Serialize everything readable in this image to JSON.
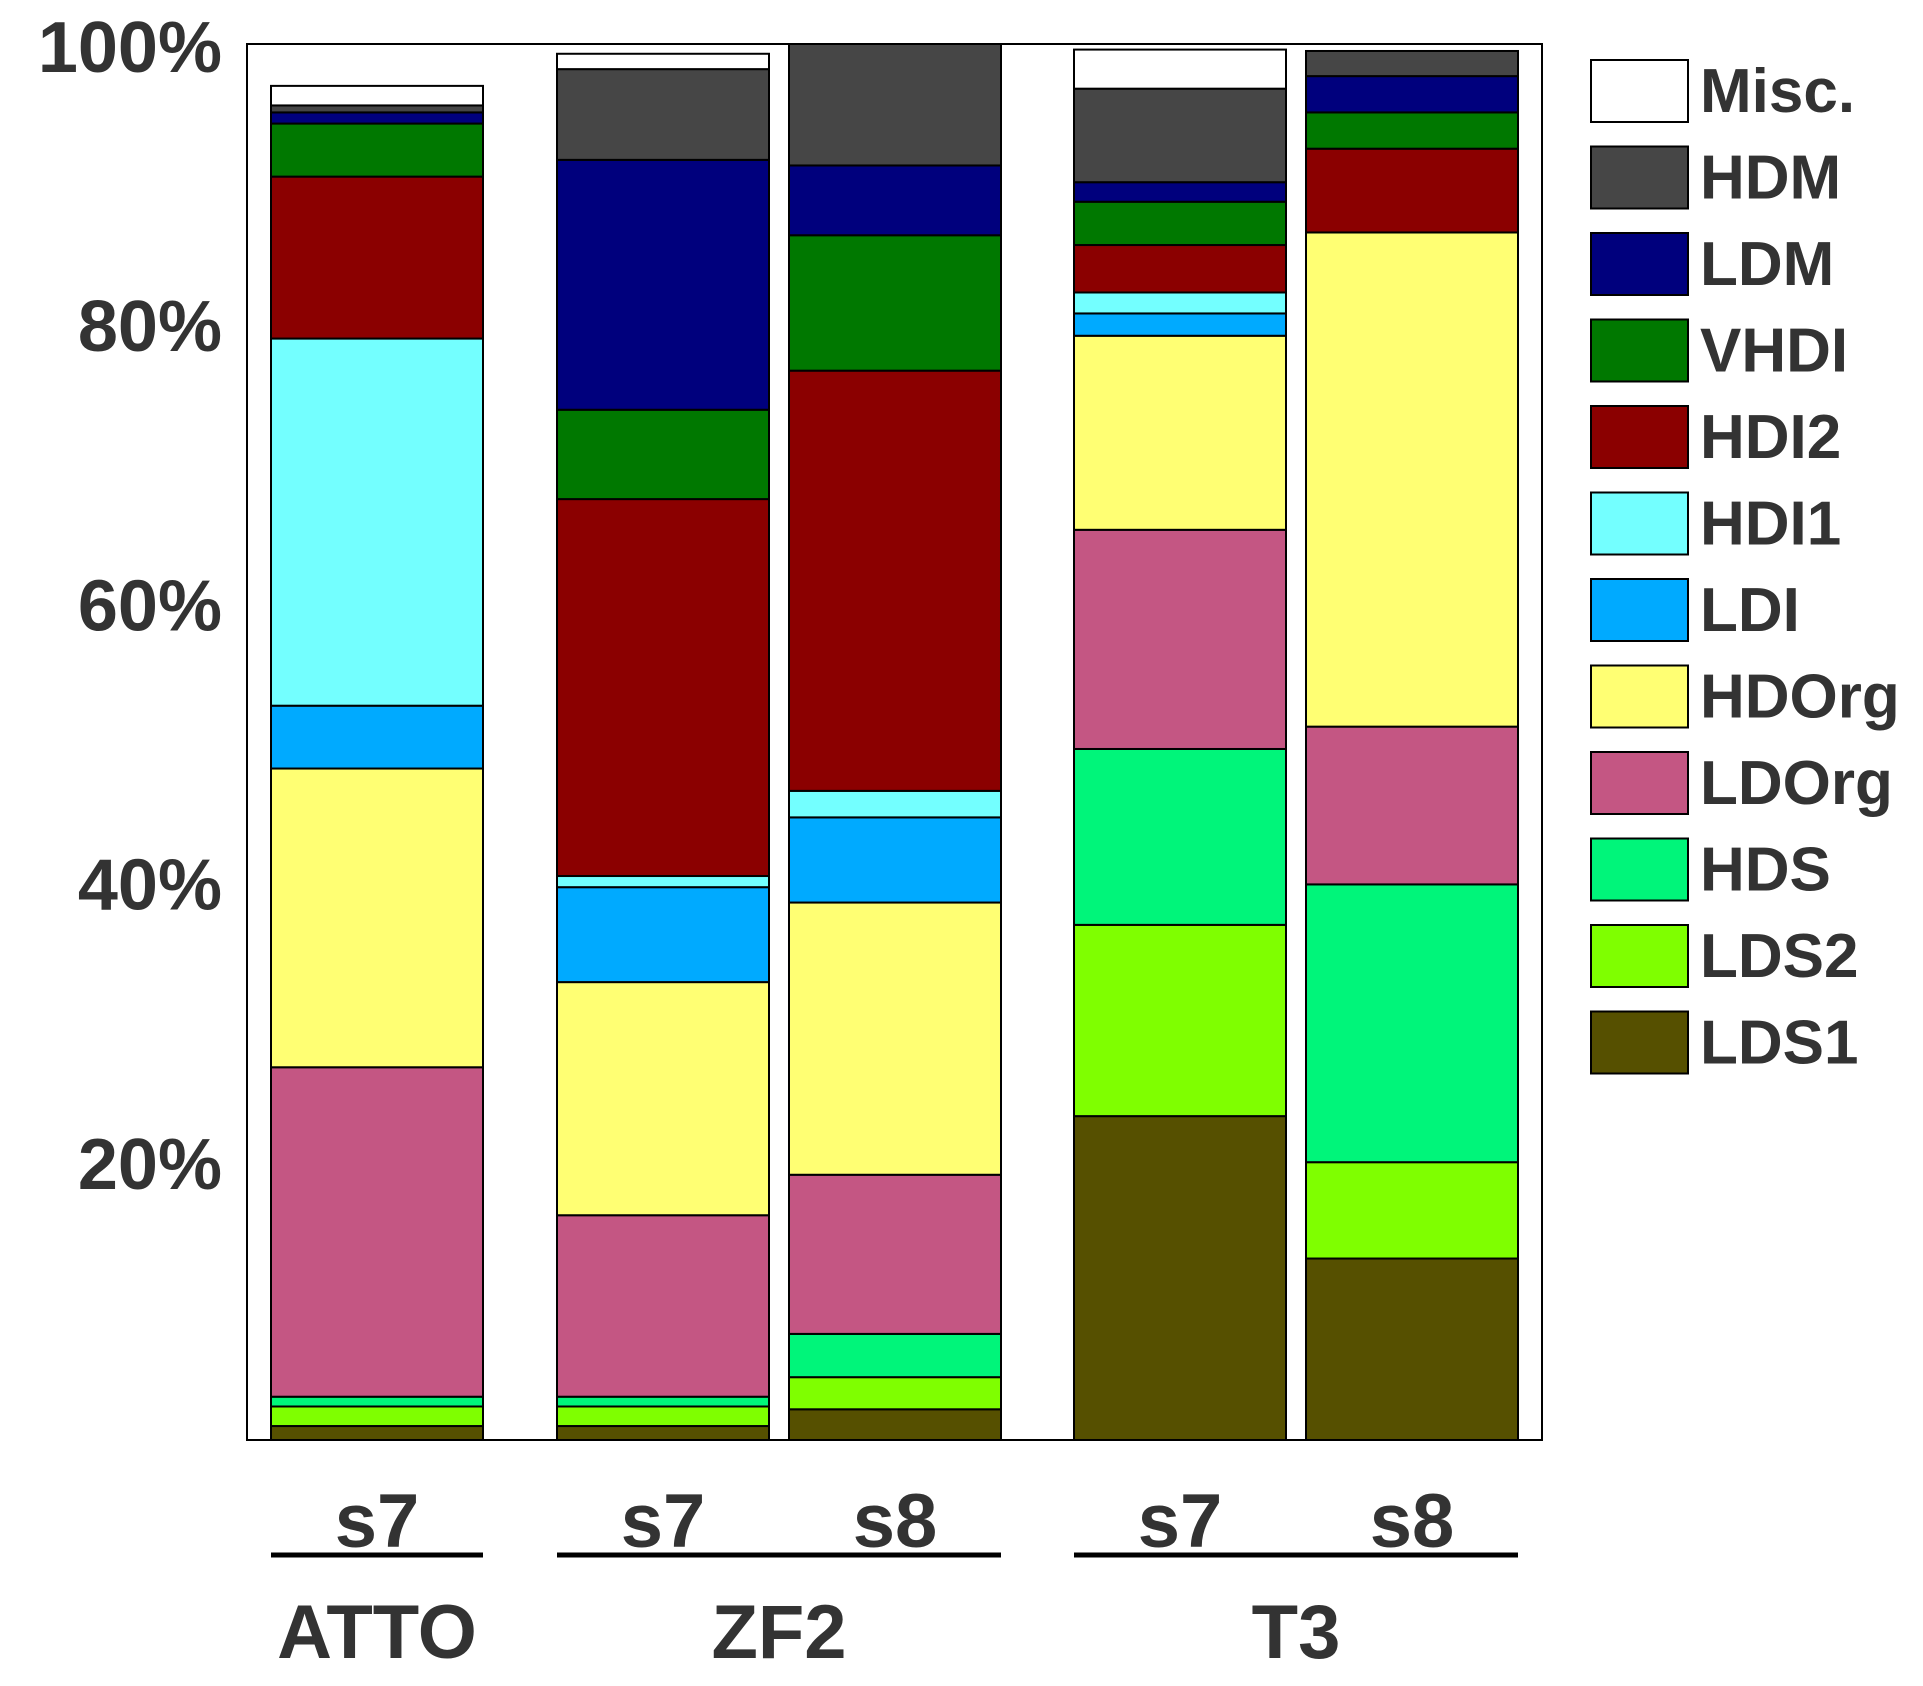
{
  "chart_data": {
    "type": "stacked-bar",
    "ylim": [
      0,
      100
    ],
    "y_ticks": [
      {
        "value": 20,
        "label": "20%"
      },
      {
        "value": 40,
        "label": "40%"
      },
      {
        "value": 60,
        "label": "60%"
      },
      {
        "value": 80,
        "label": "80%"
      },
      {
        "value": 100,
        "label": "100%"
      }
    ],
    "xlabel": "",
    "ylabel": "",
    "groups": [
      {
        "name": "ATTO",
        "bars": [
          "s7"
        ]
      },
      {
        "name": "ZF2",
        "bars": [
          "s7",
          "s8"
        ]
      },
      {
        "name": "T3",
        "bars": [
          "s7",
          "s8"
        ]
      }
    ],
    "series": [
      {
        "name": "LDS1",
        "color": "#565000",
        "values": [
          1.0,
          1.0,
          2.2,
          23.2,
          13.0
        ]
      },
      {
        "name": "LDS2",
        "color": "#7fff00",
        "values": [
          1.4,
          1.4,
          2.3,
          13.7,
          6.9
        ]
      },
      {
        "name": "HDS",
        "color": "#00f57a",
        "values": [
          0.7,
          0.7,
          3.1,
          12.6,
          19.9
        ]
      },
      {
        "name": "LDOrg",
        "color": "#c45683",
        "values": [
          23.6,
          13.0,
          11.4,
          15.7,
          11.3
        ]
      },
      {
        "name": "HDOrg",
        "color": "#ffff73",
        "values": [
          21.4,
          16.7,
          19.5,
          13.9,
          35.4
        ]
      },
      {
        "name": "LDI",
        "color": "#00aaff",
        "values": [
          4.5,
          6.8,
          6.1,
          1.6,
          0.0
        ]
      },
      {
        "name": "HDI1",
        "color": "#73ffff",
        "values": [
          26.3,
          0.8,
          1.9,
          1.5,
          0.0
        ]
      },
      {
        "name": "HDI2",
        "color": "#8b0000",
        "values": [
          11.6,
          27.0,
          30.1,
          3.4,
          6.0
        ]
      },
      {
        "name": "VHDI",
        "color": "#007800",
        "values": [
          3.8,
          6.4,
          9.7,
          3.1,
          2.6
        ]
      },
      {
        "name": "LDM",
        "color": "#00007d",
        "values": [
          0.8,
          17.9,
          5.0,
          1.4,
          2.6
        ]
      },
      {
        "name": "HDM",
        "color": "#464646",
        "values": [
          0.5,
          6.5,
          8.7,
          6.7,
          1.8
        ]
      },
      {
        "name": "Misc.",
        "color": "#ffffff",
        "values": [
          1.4,
          1.1,
          0.0,
          2.8,
          0.0
        ]
      }
    ]
  }
}
